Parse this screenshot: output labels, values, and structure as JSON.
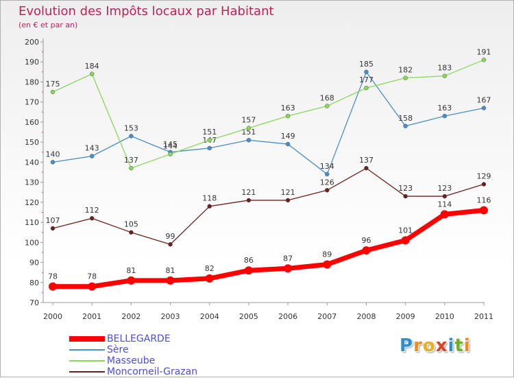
{
  "header": {
    "title": "Evolution des Impôts locaux par Habitant",
    "subtitle": "(en € et par an)"
  },
  "logo": {
    "letters": [
      "P",
      "r",
      "o",
      "x",
      "i",
      "t",
      "i"
    ],
    "colors": [
      "#2a8fd4",
      "#f08a1c",
      "#e8b020",
      "#e04020",
      "#2a8fd4",
      "#6ab020",
      "#f08a1c"
    ]
  },
  "chart_data": {
    "type": "line",
    "x": [
      "2000",
      "2001",
      "2002",
      "2003",
      "2004",
      "2005",
      "2006",
      "2007",
      "2008",
      "2009",
      "2010",
      "2011"
    ],
    "ylim": [
      70,
      200
    ],
    "yticks": [
      70,
      80,
      90,
      100,
      110,
      120,
      130,
      140,
      150,
      160,
      170,
      180,
      190,
      200
    ],
    "grid": false,
    "legend_position": "bottom-left",
    "series": [
      {
        "name": "BELLEGARDE",
        "color": "#ff0000",
        "values": [
          78,
          78,
          81,
          81,
          82,
          86,
          87,
          89,
          96,
          101,
          114,
          116
        ]
      },
      {
        "name": "Sère",
        "color": "#4a8ec8",
        "values": [
          140,
          143,
          153,
          145,
          147,
          151,
          149,
          134,
          185,
          158,
          163,
          167
        ]
      },
      {
        "name": "Masseube",
        "color": "#88d85a",
        "values": [
          175,
          184,
          137,
          144,
          151,
          157,
          163,
          168,
          177,
          182,
          183,
          191
        ]
      },
      {
        "name": "Moncorneil-Grazan",
        "color": "#6b2020",
        "values": [
          107,
          112,
          105,
          99,
          118,
          121,
          121,
          126,
          137,
          123,
          123,
          129
        ]
      }
    ]
  }
}
